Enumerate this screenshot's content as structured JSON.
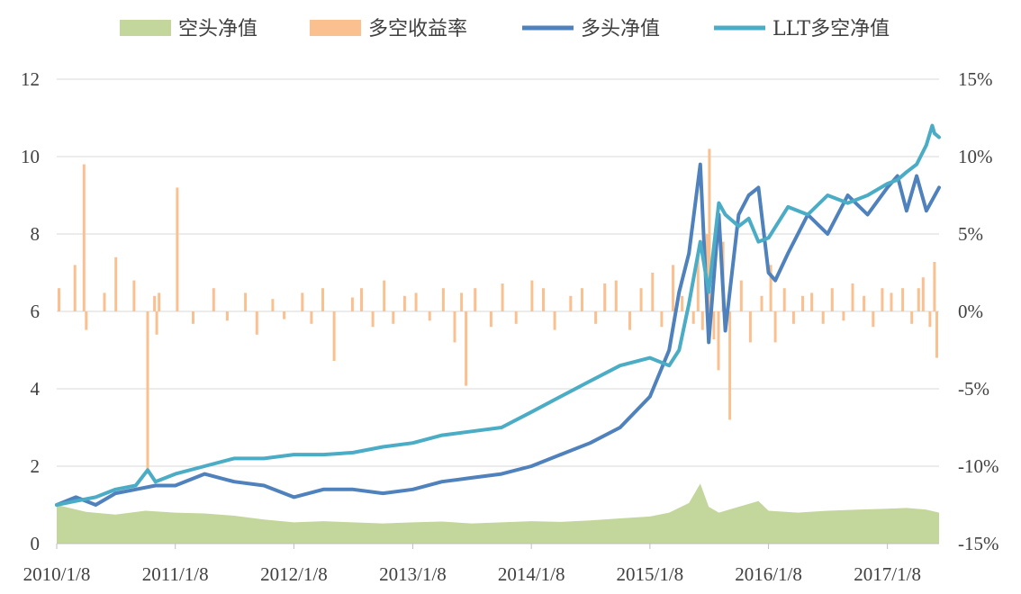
{
  "chart_data": {
    "type": "line",
    "title": "",
    "xlabel": "",
    "ylabel": "",
    "x_ticks": [
      "2010/1/8",
      "2011/1/8",
      "2012/1/8",
      "2013/1/8",
      "2014/1/8",
      "2015/1/8",
      "2016/1/8",
      "2017/1/8"
    ],
    "x_range": [
      "2010/1/8",
      "2017/6/16"
    ],
    "y_left": {
      "range": [
        0,
        12
      ],
      "ticks": [
        "0",
        "2",
        "4",
        "6",
        "8",
        "10",
        "12"
      ]
    },
    "y_right": {
      "range": [
        -15,
        15
      ],
      "ticks": [
        "-15%",
        "-10%",
        "-5%",
        "0%",
        "5%",
        "10%",
        "15%"
      ]
    },
    "grid": "horizontal",
    "legend_position": "top",
    "legend": [
      {
        "label": "空头净值",
        "color": "#c3d69b",
        "kind": "area"
      },
      {
        "label": "多空收益率",
        "color": "#fac090",
        "kind": "bar"
      },
      {
        "label": "多头净值",
        "color": "#4f81bd",
        "kind": "line"
      },
      {
        "label": "LLT多空净值",
        "color": "#4bacc6",
        "kind": "line"
      }
    ],
    "series": [
      {
        "name": "空头净值",
        "axis": "left",
        "type": "area",
        "color": "#c3d69b",
        "x": [
          "2010/1/8",
          "2010/4/8",
          "2010/7/8",
          "2010/10/8",
          "2011/1/8",
          "2011/4/8",
          "2011/7/8",
          "2011/10/8",
          "2012/1/8",
          "2012/4/8",
          "2012/7/8",
          "2012/10/8",
          "2013/1/8",
          "2013/4/8",
          "2013/7/8",
          "2013/10/8",
          "2014/1/8",
          "2014/4/8",
          "2014/7/8",
          "2014/10/8",
          "2015/1/8",
          "2015/3/8",
          "2015/5/8",
          "2015/6/12",
          "2015/7/8",
          "2015/8/8",
          "2015/10/8",
          "2015/12/8",
          "2016/1/8",
          "2016/4/8",
          "2016/7/8",
          "2016/10/8",
          "2017/1/8",
          "2017/3/8",
          "2017/5/8",
          "2017/6/16"
        ],
        "values": [
          1.0,
          0.82,
          0.75,
          0.85,
          0.8,
          0.78,
          0.72,
          0.62,
          0.55,
          0.58,
          0.55,
          0.52,
          0.55,
          0.57,
          0.52,
          0.55,
          0.58,
          0.56,
          0.6,
          0.65,
          0.7,
          0.8,
          1.05,
          1.55,
          0.95,
          0.8,
          0.95,
          1.1,
          0.85,
          0.8,
          0.85,
          0.88,
          0.9,
          0.92,
          0.88,
          0.8
        ]
      },
      {
        "name": "多空收益率",
        "axis": "right",
        "type": "bar",
        "color": "#fac090",
        "x": [
          "2010/1/15",
          "2010/3/5",
          "2010/4/2",
          "2010/4/9",
          "2010/6/4",
          "2010/7/9",
          "2010/9/3",
          "2010/10/15",
          "2010/11/5",
          "2010/11/12",
          "2010/11/19",
          "2011/1/14",
          "2011/3/4",
          "2011/5/6",
          "2011/6/17",
          "2011/8/12",
          "2011/9/16",
          "2011/11/4",
          "2011/12/9",
          "2012/2/3",
          "2012/3/2",
          "2012/4/6",
          "2012/5/11",
          "2012/7/6",
          "2012/8/3",
          "2012/9/7",
          "2012/10/12",
          "2012/11/9",
          "2012/12/14",
          "2013/1/18",
          "2013/3/1",
          "2013/4/12",
          "2013/5/17",
          "2013/6/7",
          "2013/6/21",
          "2013/7/19",
          "2013/9/6",
          "2013/10/11",
          "2013/11/22",
          "2014/1/10",
          "2014/2/14",
          "2014/3/21",
          "2014/5/9",
          "2014/6/13",
          "2014/7/25",
          "2014/8/22",
          "2014/9/26",
          "2014/11/7",
          "2014/12/12",
          "2015/1/16",
          "2015/2/13",
          "2015/3/20",
          "2015/4/17",
          "2015/5/22",
          "2015/6/5",
          "2015/6/19",
          "2015/7/3",
          "2015/7/10",
          "2015/7/24",
          "2015/8/7",
          "2015/8/21",
          "2015/9/11",
          "2015/10/16",
          "2015/11/13",
          "2015/12/18",
          "2016/1/15",
          "2016/1/29",
          "2016/2/26",
          "2016/3/25",
          "2016/4/22",
          "2016/5/20",
          "2016/6/24",
          "2016/7/22",
          "2016/8/26",
          "2016/9/23",
          "2016/10/28",
          "2016/11/25",
          "2016/12/23",
          "2017/1/20",
          "2017/2/24",
          "2017/3/24",
          "2017/4/14",
          "2017/4/28",
          "2017/5/19",
          "2017/6/2",
          "2017/6/9"
        ],
        "values": [
          1.5,
          3.0,
          9.5,
          -1.2,
          1.2,
          3.5,
          2.0,
          -10.5,
          1.0,
          -1.5,
          1.2,
          8.0,
          -0.8,
          1.5,
          -0.6,
          1.2,
          -1.5,
          0.8,
          -0.5,
          1.2,
          -0.8,
          1.5,
          -3.2,
          0.9,
          1.5,
          -1.0,
          2.0,
          -0.8,
          1.0,
          1.2,
          -0.6,
          1.5,
          -2.0,
          1.2,
          -4.8,
          1.5,
          -1.0,
          1.8,
          -0.8,
          2.0,
          1.5,
          -1.2,
          1.0,
          1.5,
          -0.8,
          1.8,
          2.0,
          -1.2,
          1.5,
          2.5,
          -1.0,
          3.0,
          1.0,
          -0.8,
          3.5,
          -1.2,
          5.0,
          10.5,
          -1.8,
          -3.8,
          4.5,
          -7.0,
          2.0,
          -2.0,
          1.0,
          3.0,
          -2.0,
          1.5,
          -0.8,
          1.0,
          1.2,
          -0.8,
          1.5,
          -0.6,
          1.8,
          1.0,
          -1.0,
          1.5,
          1.2,
          1.5,
          -0.8,
          1.5,
          2.2,
          -1.0,
          3.2,
          -3.0
        ]
      },
      {
        "name": "多头净值",
        "axis": "left",
        "type": "line",
        "color": "#4f81bd",
        "x": [
          "2010/1/8",
          "2010/3/8",
          "2010/5/8",
          "2010/7/8",
          "2010/9/8",
          "2010/11/8",
          "2011/1/8",
          "2011/4/8",
          "2011/7/8",
          "2011/10/8",
          "2012/1/8",
          "2012/4/8",
          "2012/7/8",
          "2012/10/8",
          "2013/1/8",
          "2013/4/8",
          "2013/7/8",
          "2013/10/8",
          "2014/1/8",
          "2014/4/8",
          "2014/7/8",
          "2014/10/8",
          "2015/1/8",
          "2015/3/8",
          "2015/4/8",
          "2015/5/8",
          "2015/6/12",
          "2015/7/8",
          "2015/8/8",
          "2015/8/28",
          "2015/10/8",
          "2015/11/8",
          "2015/12/8",
          "2016/1/8",
          "2016/1/29",
          "2016/3/8",
          "2016/5/8",
          "2016/7/8",
          "2016/9/8",
          "2016/11/8",
          "2017/1/8",
          "2017/2/8",
          "2017/3/8",
          "2017/4/8",
          "2017/5/8",
          "2017/6/16"
        ],
        "values": [
          1.0,
          1.2,
          1.0,
          1.3,
          1.4,
          1.5,
          1.5,
          1.8,
          1.6,
          1.5,
          1.2,
          1.4,
          1.4,
          1.3,
          1.4,
          1.6,
          1.7,
          1.8,
          2.0,
          2.3,
          2.6,
          3.0,
          3.8,
          5.0,
          6.5,
          7.5,
          9.8,
          5.2,
          8.5,
          5.5,
          8.5,
          9.0,
          9.2,
          7.0,
          6.8,
          7.5,
          8.5,
          8.0,
          9.0,
          8.5,
          9.2,
          9.5,
          8.6,
          9.5,
          8.6,
          9.2
        ]
      },
      {
        "name": "LLT多空净值",
        "axis": "left",
        "type": "line",
        "color": "#4bacc6",
        "x": [
          "2010/1/8",
          "2010/3/8",
          "2010/5/8",
          "2010/7/8",
          "2010/9/8",
          "2010/10/15",
          "2010/11/8",
          "2011/1/8",
          "2011/4/8",
          "2011/7/8",
          "2011/10/8",
          "2012/1/8",
          "2012/4/8",
          "2012/7/8",
          "2012/10/8",
          "2013/1/8",
          "2013/4/8",
          "2013/7/8",
          "2013/10/8",
          "2014/1/8",
          "2014/4/8",
          "2014/7/8",
          "2014/10/8",
          "2015/1/8",
          "2015/3/8",
          "2015/4/8",
          "2015/5/8",
          "2015/6/12",
          "2015/7/8",
          "2015/8/8",
          "2015/8/28",
          "2015/10/8",
          "2015/11/8",
          "2015/12/8",
          "2016/1/8",
          "2016/3/8",
          "2016/5/8",
          "2016/7/8",
          "2016/9/8",
          "2016/11/8",
          "2017/1/8",
          "2017/2/8",
          "2017/3/8",
          "2017/4/8",
          "2017/5/8",
          "2017/5/26",
          "2017/6/2",
          "2017/6/16"
        ],
        "values": [
          1.0,
          1.1,
          1.2,
          1.4,
          1.5,
          1.9,
          1.6,
          1.8,
          2.0,
          2.2,
          2.2,
          2.3,
          2.3,
          2.35,
          2.5,
          2.6,
          2.8,
          2.9,
          3.0,
          3.4,
          3.8,
          4.2,
          4.6,
          4.8,
          4.6,
          5.0,
          6.2,
          7.8,
          6.5,
          8.8,
          8.5,
          8.2,
          8.4,
          7.8,
          7.9,
          8.7,
          8.5,
          9.0,
          8.8,
          9.0,
          9.3,
          9.4,
          9.6,
          9.8,
          10.3,
          10.8,
          10.6,
          10.5
        ]
      }
    ]
  }
}
